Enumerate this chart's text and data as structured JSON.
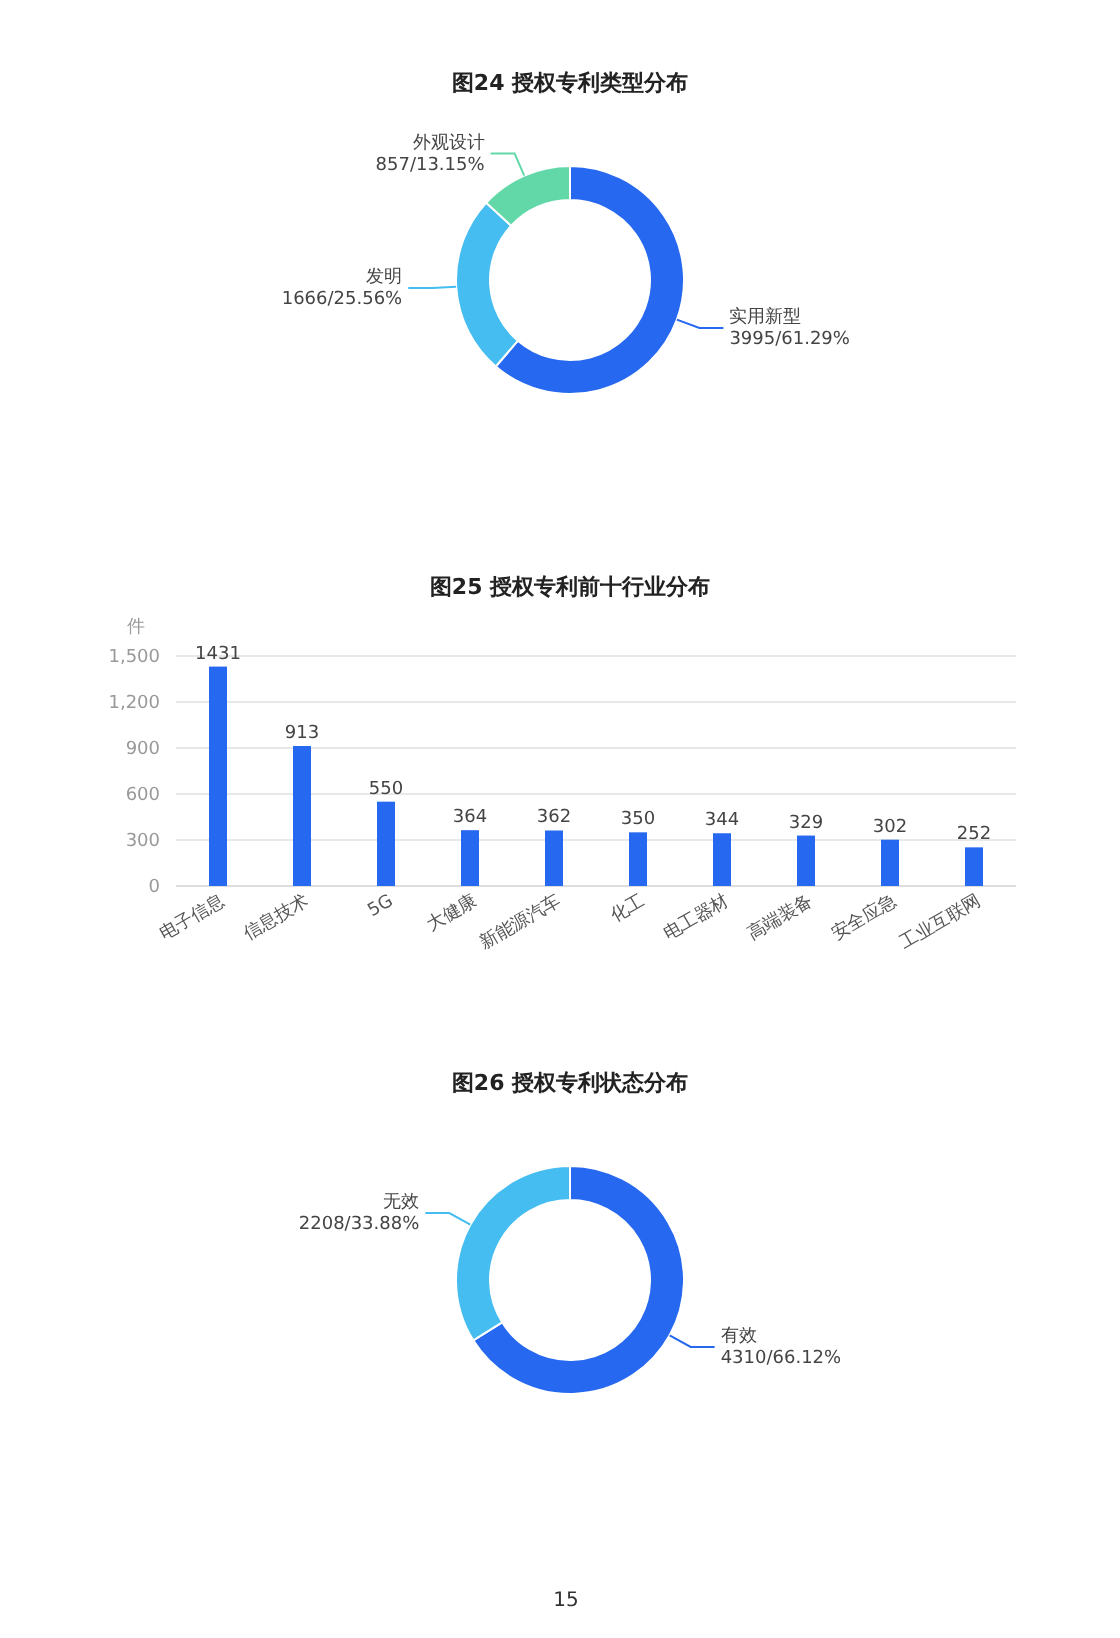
{
  "chart_data": [
    {
      "type": "donut",
      "title": "图24 授权专利类型分布",
      "categories": [
        "实用新型",
        "发明",
        "外观设计"
      ],
      "values": [
        3995,
        1666,
        857
      ],
      "value_labels": [
        "3995/61.29%",
        "1666/25.56%",
        "857/13.15%"
      ],
      "colors": [
        "#2668ef",
        "#45bdf0",
        "#62d8a9"
      ]
    },
    {
      "type": "bar",
      "title": "图25 授权专利前十行业分布",
      "ylabel": "件",
      "categories": [
        "电子信息",
        "信息技术",
        "5G",
        "大健康",
        "新能源汽车",
        "化工",
        "电工器材",
        "高端装备",
        "安全应急",
        "工业互联网"
      ],
      "values": [
        1431,
        913,
        550,
        364,
        362,
        350,
        344,
        329,
        302,
        252
      ],
      "color": "#2668ef",
      "ylim": [
        0,
        1500
      ],
      "yticks": [
        0,
        300,
        600,
        900,
        {
          "value": 1200,
          "label": "1,200"
        },
        {
          "value": 1500,
          "label": "1,500"
        }
      ],
      "grid": "y",
      "data_labels": true
    },
    {
      "type": "donut",
      "title": "图26 授权专利状态分布",
      "categories": [
        "有效",
        "无效"
      ],
      "values": [
        4310,
        2208
      ],
      "value_labels": [
        "4310/66.12%",
        "2208/33.88%"
      ],
      "colors": [
        "#2668ef",
        "#45bdf0"
      ],
      "annotations": [
        "15"
      ]
    }
  ]
}
